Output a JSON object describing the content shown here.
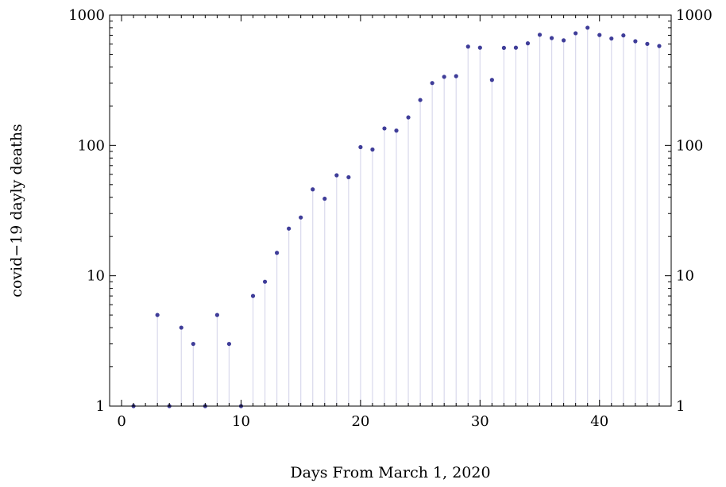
{
  "chart_data": {
    "type": "scatter",
    "title": "",
    "xlabel": "Days From March 1, 2020",
    "ylabel": "covid−19 dayly deaths",
    "xlim": [
      -1,
      46
    ],
    "ylim": [
      1,
      1000
    ],
    "y_scale": "log",
    "x_ticks": [
      0,
      10,
      20,
      30,
      40
    ],
    "x_tick_labels": [
      "0",
      "10",
      "20",
      "30",
      "40"
    ],
    "y_ticks": [
      1,
      10,
      100,
      1000
    ],
    "y_tick_labels": [
      "1",
      "10",
      "100",
      "1000"
    ],
    "grid": false,
    "legend": "none",
    "style": "points with drop lines to the axis",
    "colors": {
      "point": "#3f3d99",
      "dropline": "#d9d9ec",
      "axis": "#000000"
    },
    "series": [
      {
        "x": [
          1,
          2,
          3,
          4,
          5,
          6,
          7,
          8,
          9,
          10,
          11,
          12,
          13,
          14,
          15,
          16,
          17,
          18,
          19,
          20,
          21,
          22,
          23,
          24,
          25,
          26,
          27,
          28,
          29,
          30,
          31,
          32,
          33,
          34,
          35,
          36,
          37,
          38,
          39,
          40,
          41,
          42,
          43,
          44,
          45
        ],
        "values": [
          1,
          0,
          5,
          1,
          4,
          3,
          1,
          5,
          3,
          1,
          7,
          9,
          15,
          23,
          28,
          46,
          39,
          59,
          57,
          97,
          93,
          135,
          130,
          164,
          223,
          301,
          336,
          340,
          573,
          562,
          318,
          560,
          562,
          607,
          706,
          666,
          640,
          725,
          800,
          703,
          661,
          698,
          630,
          601,
          579
        ]
      }
    ]
  }
}
